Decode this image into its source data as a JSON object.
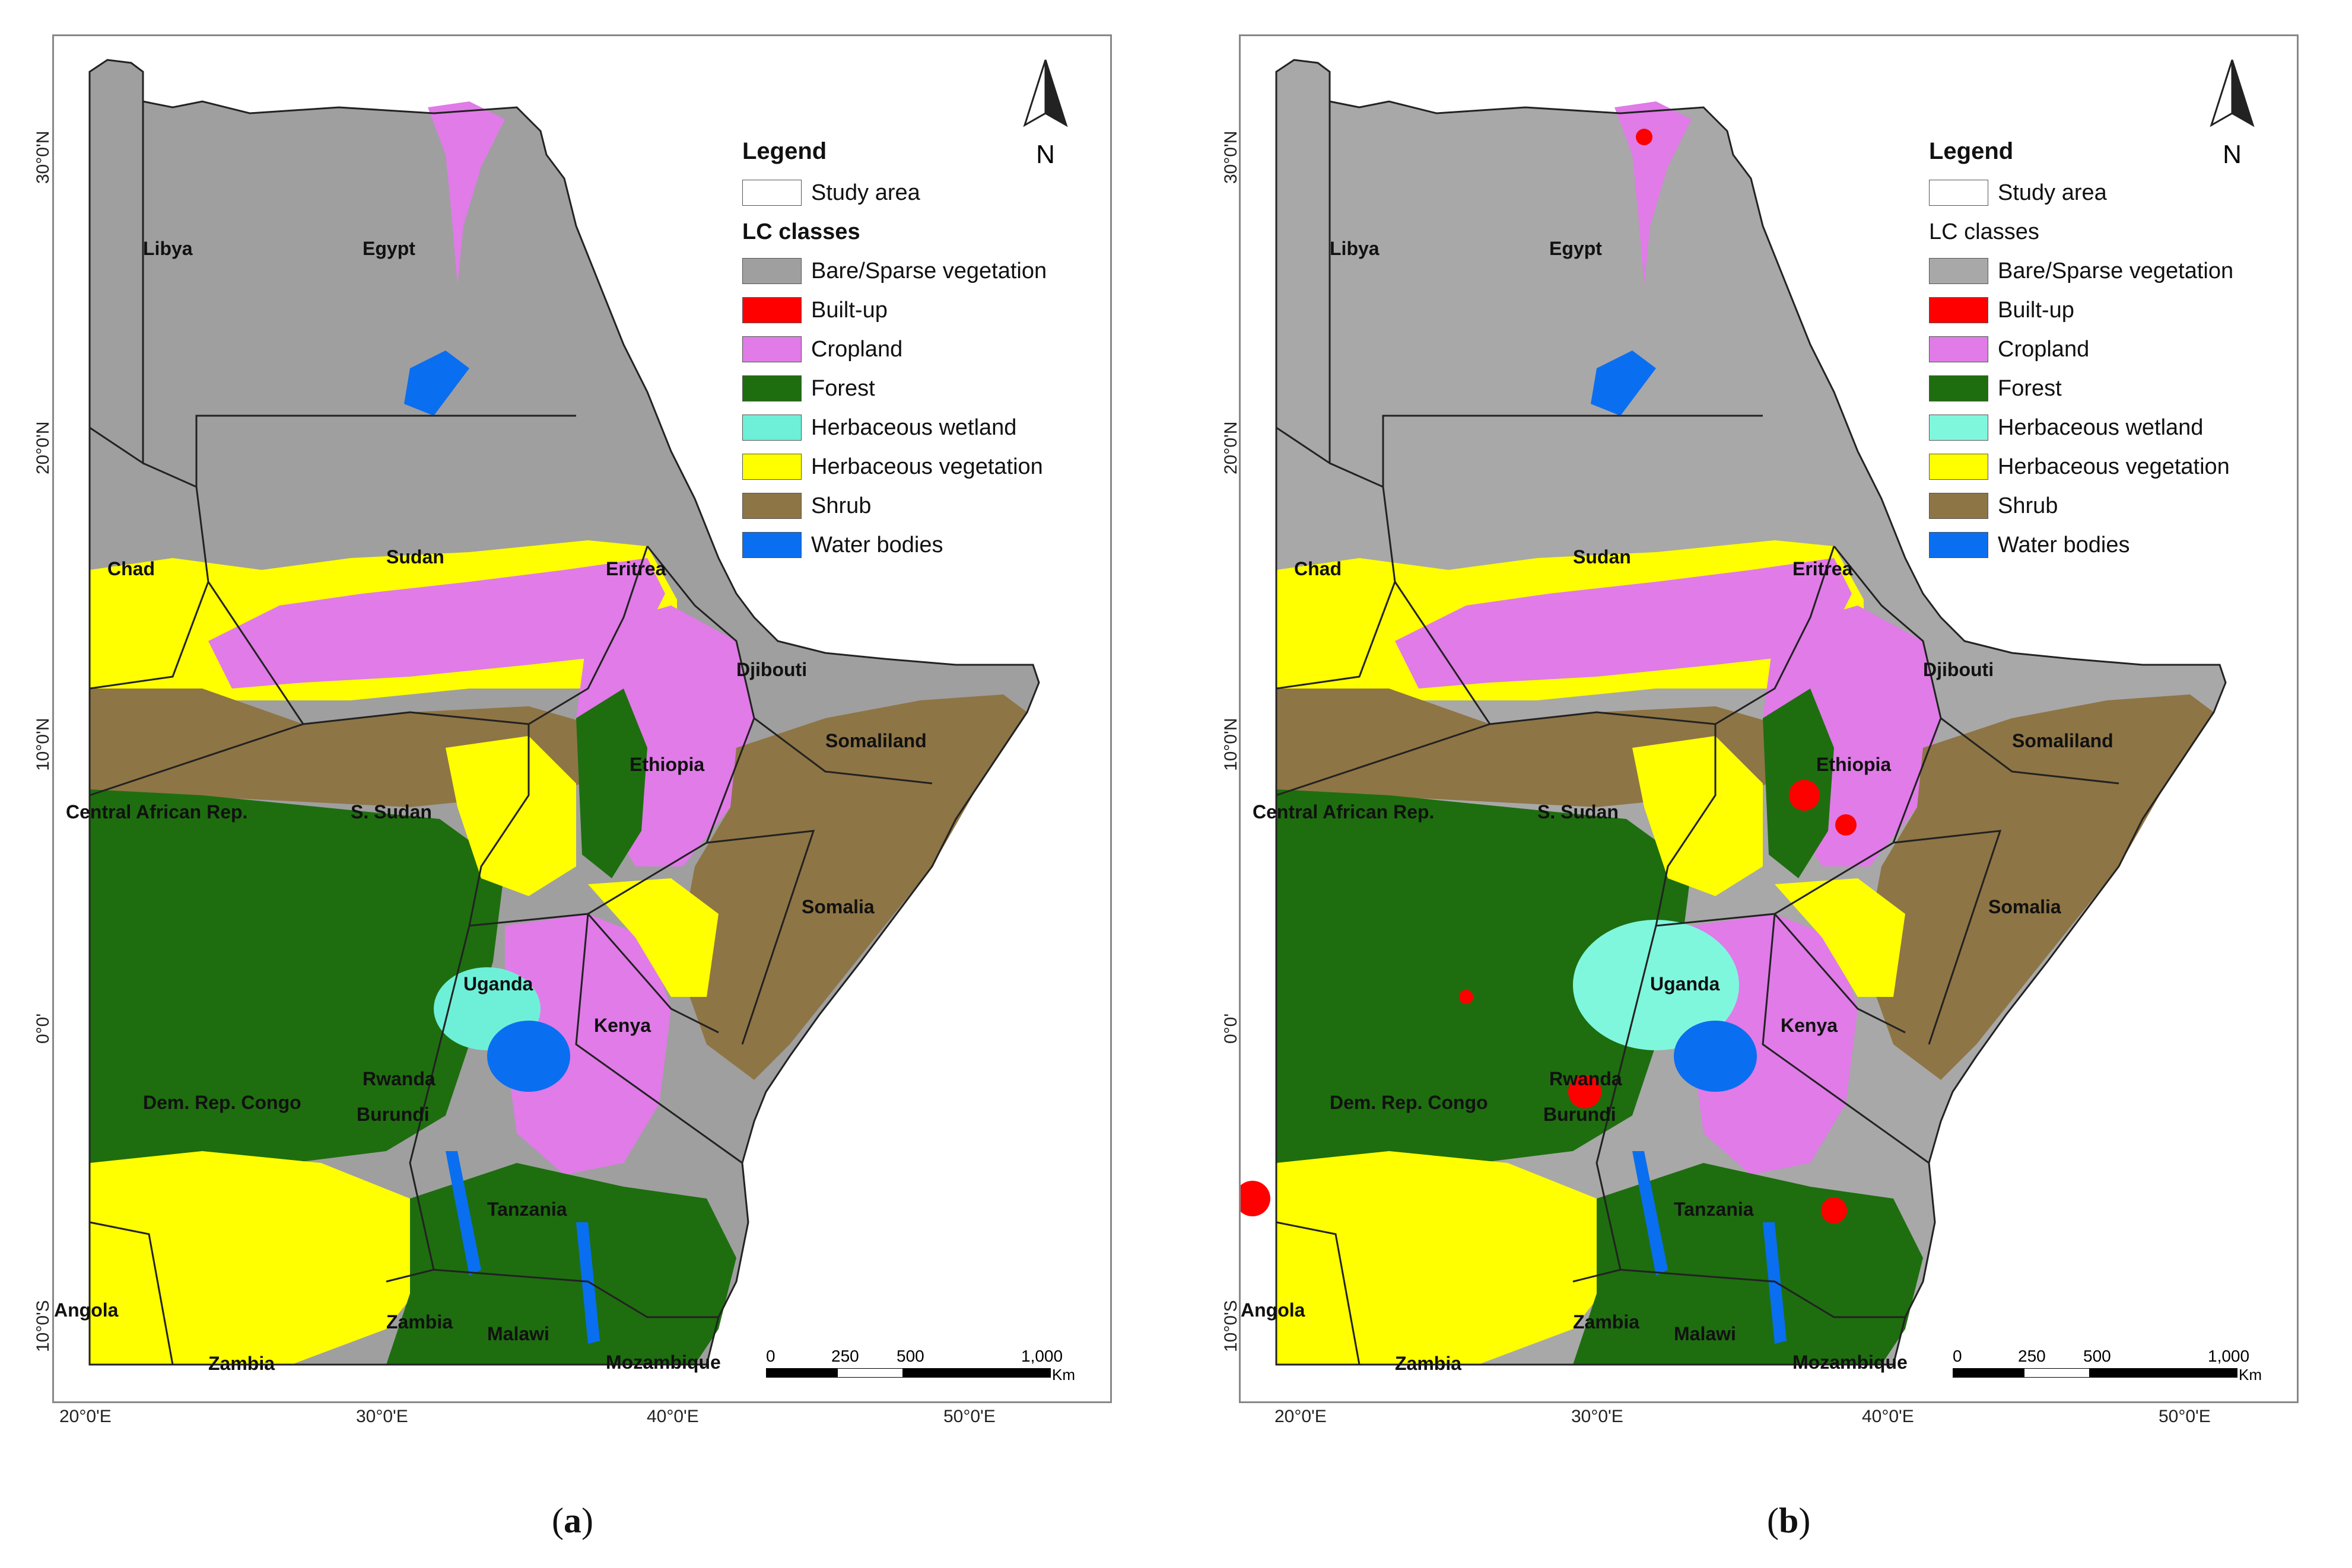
{
  "panels": [
    {
      "id": "a",
      "caption_open": "(",
      "caption_letter": "a",
      "caption_close": ")",
      "legend": {
        "title": "Legend",
        "study_area": "Study area",
        "classes_heading": "LC classes",
        "classes_bold": true,
        "items": [
          {
            "label": "Bare/Sparse vegetation",
            "color": "#9f9f9f"
          },
          {
            "label": "Built-up",
            "color": "#ff0000"
          },
          {
            "label": "Cropland",
            "color": "#e07be8"
          },
          {
            "label": "Forest",
            "color": "#1e6e0f"
          },
          {
            "label": "Herbaceous wetland",
            "color": "#6ef0d8"
          },
          {
            "label": "Herbaceous vegetation",
            "color": "#ffff00"
          },
          {
            "label": "Shrub",
            "color": "#8e7545"
          },
          {
            "label": "Water bodies",
            "color": "#0a6ef0"
          }
        ]
      }
    },
    {
      "id": "b",
      "caption_open": "(",
      "caption_letter": "b",
      "caption_close": ")",
      "legend": {
        "title": "Legend",
        "study_area": "Study area",
        "classes_heading": "LC classes",
        "classes_bold": false,
        "items": [
          {
            "label": "Bare/Sparse vegetation",
            "color": "#a8a8a8"
          },
          {
            "label": "Built-up",
            "color": "#ff0000"
          },
          {
            "label": "Cropland",
            "color": "#e07be8"
          },
          {
            "label": "Forest",
            "color": "#1e6e0f"
          },
          {
            "label": "Herbaceous wetland",
            "color": "#7ff7dd"
          },
          {
            "label": "Herbaceous vegetation",
            "color": "#ffff00"
          },
          {
            "label": "Shrub",
            "color": "#8e7545"
          },
          {
            "label": "Water bodies",
            "color": "#0a6ef0"
          }
        ]
      }
    }
  ],
  "countries": {
    "libya": "Libya",
    "egypt": "Egypt",
    "sudan": "Sudan",
    "chad": "Chad",
    "eritrea": "Eritrea",
    "djibouti": "Djibouti",
    "somaliland": "Somaliland",
    "ethiopia": "Ethiopia",
    "car": "Central African Rep.",
    "ssudan": "S. Sudan",
    "somalia": "Somalia",
    "uganda": "Uganda",
    "kenya": "Kenya",
    "drc": "Dem. Rep. Congo",
    "rwanda": "Rwanda",
    "burundi": "Burundi",
    "tanzania": "Tanzania",
    "angola": "Angola",
    "zambia": "Zambia",
    "zambia2": "Zambia",
    "malawi": "Malawi",
    "mozambique": "Mozambique"
  },
  "lat_ticks": [
    "30°0'N",
    "20°0'N",
    "10°0'N",
    "0°0'",
    "10°0'S"
  ],
  "lon_ticks": [
    "20°0'E",
    "30°0'E",
    "40°0'E",
    "50°0'E"
  ],
  "scale": {
    "labels": [
      "0",
      "250",
      "500",
      "1,000"
    ],
    "unit": "Km"
  },
  "north_label": "N"
}
